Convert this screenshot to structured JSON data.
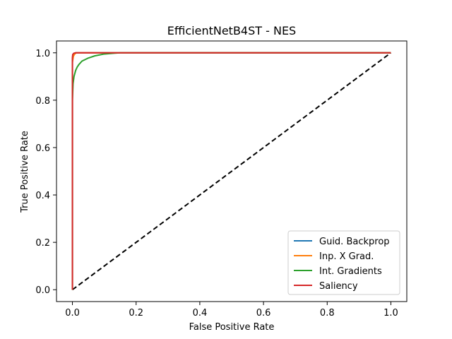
{
  "chart_data": {
    "type": "line",
    "title": "EfficientNetB4ST - NES",
    "xlabel": "False Positive Rate",
    "ylabel": "True Positive Rate",
    "xlim": [
      -0.05,
      1.05
    ],
    "ylim": [
      -0.05,
      1.05
    ],
    "xticks": [
      0.0,
      0.2,
      0.4,
      0.6,
      0.8,
      1.0
    ],
    "yticks": [
      0.0,
      0.2,
      0.4,
      0.6,
      0.8,
      1.0
    ],
    "xtick_labels": [
      "0.0",
      "0.2",
      "0.4",
      "0.6",
      "0.8",
      "1.0"
    ],
    "ytick_labels": [
      "0.0",
      "0.2",
      "0.4",
      "0.6",
      "0.8",
      "1.0"
    ],
    "grid": false,
    "legend_position": "lower-right",
    "series": [
      {
        "name": "Guid. Backprop",
        "color": "#1f77b4",
        "x": [
          0.0,
          0.0,
          0.002,
          0.005,
          0.01,
          1.0
        ],
        "y": [
          0.0,
          0.97,
          0.99,
          0.995,
          1.0,
          1.0
        ]
      },
      {
        "name": "Inp. X Grad.",
        "color": "#ff7f0e",
        "x": [
          0.0,
          0.0,
          0.003,
          0.006,
          0.012,
          1.0
        ],
        "y": [
          0.0,
          0.96,
          0.985,
          0.993,
          1.0,
          1.0
        ]
      },
      {
        "name": "Int. Gradients",
        "color": "#2ca02c",
        "x": [
          0.0,
          0.0,
          0.002,
          0.005,
          0.01,
          0.015,
          0.02,
          0.03,
          0.05,
          0.07,
          0.1,
          0.13,
          0.15,
          1.0
        ],
        "y": [
          0.0,
          0.8,
          0.87,
          0.9,
          0.925,
          0.94,
          0.95,
          0.965,
          0.978,
          0.987,
          0.995,
          0.998,
          1.0,
          1.0
        ]
      },
      {
        "name": "Saliency",
        "color": "#d62728",
        "x": [
          0.0,
          0.0,
          0.001,
          0.004,
          0.01,
          1.0
        ],
        "y": [
          0.0,
          0.98,
          0.993,
          0.998,
          1.0,
          1.0
        ]
      }
    ],
    "reference_line": {
      "x": [
        0.0,
        1.0
      ],
      "y": [
        0.0,
        1.0
      ],
      "color": "#000000",
      "style": "dashed"
    }
  }
}
